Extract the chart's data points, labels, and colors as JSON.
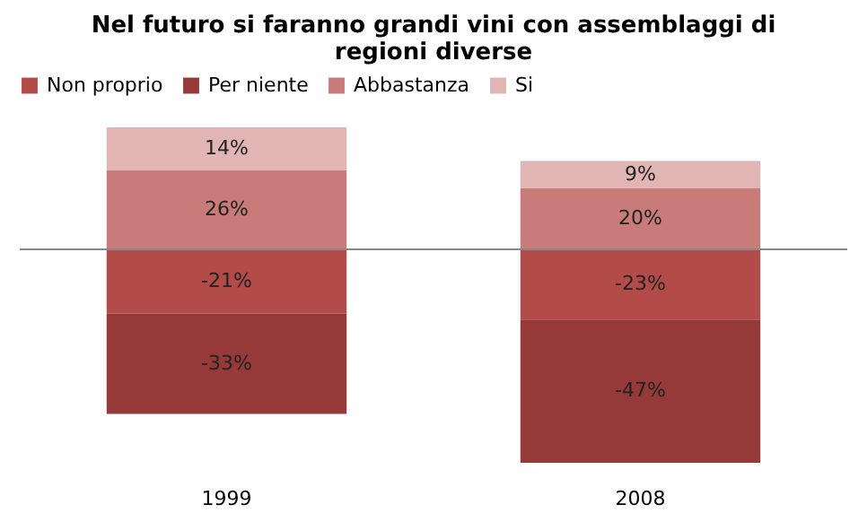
{
  "chart_data": {
    "type": "bar",
    "title": "Nel futuro si faranno grandi vini con assemblaggi di regioni diverse",
    "categories": [
      "1999",
      "2008"
    ],
    "stacked": true,
    "legend": "top",
    "series": [
      {
        "name": "Non proprio",
        "color": "#b34b48",
        "values": [
          -21,
          -23
        ],
        "value_labels": [
          "-21%",
          "-23%"
        ]
      },
      {
        "name": "Per niente",
        "color": "#953a39",
        "values": [
          -33,
          -47
        ],
        "value_labels": [
          "-33%",
          "-47%"
        ]
      },
      {
        "name": "Abbastanza",
        "color": "#c97b7a",
        "values": [
          26,
          20
        ],
        "value_labels": [
          "26%",
          "20%"
        ]
      },
      {
        "name": "Si",
        "color": "#e0b5b4",
        "values": [
          14,
          9
        ],
        "value_labels": [
          "14%",
          "9%"
        ]
      }
    ]
  }
}
